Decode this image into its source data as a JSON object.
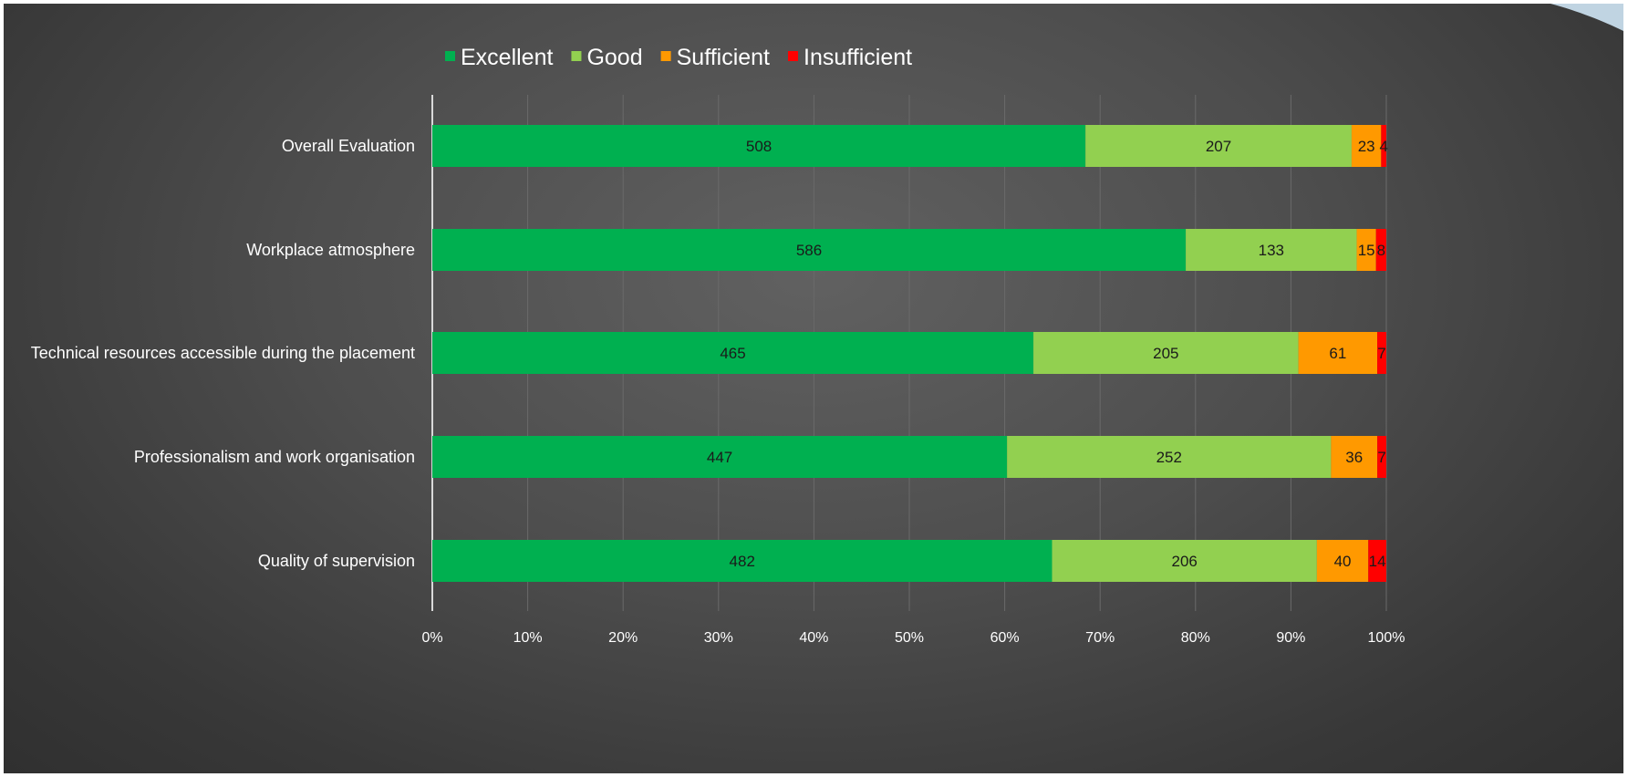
{
  "chart_data": {
    "type": "bar",
    "orientation": "horizontal",
    "stacked": "100%",
    "title": "",
    "xlabel": "",
    "ylabel": "",
    "xlim": [
      0,
      100
    ],
    "grid": true,
    "legend_position": "top",
    "categories": [
      "Overall Evaluation",
      "Workplace atmosphere",
      "Technical resources accessible during the placement",
      "Professionalism and work organisation",
      "Quality of supervision"
    ],
    "series": [
      {
        "name": "Excellent",
        "color": "#00b050",
        "values": [
          508,
          586,
          465,
          447,
          482
        ]
      },
      {
        "name": "Good",
        "color": "#92d050",
        "values": [
          207,
          133,
          205,
          252,
          206
        ]
      },
      {
        "name": "Sufficient",
        "color": "#ff9900",
        "values": [
          23,
          15,
          61,
          36,
          40
        ]
      },
      {
        "name": "Insufficient",
        "color": "#ff0000",
        "values": [
          4,
          8,
          7,
          7,
          14
        ]
      }
    ],
    "x_ticks": [
      "0%",
      "10%",
      "20%",
      "30%",
      "40%",
      "50%",
      "60%",
      "70%",
      "80%",
      "90%",
      "100%"
    ]
  }
}
